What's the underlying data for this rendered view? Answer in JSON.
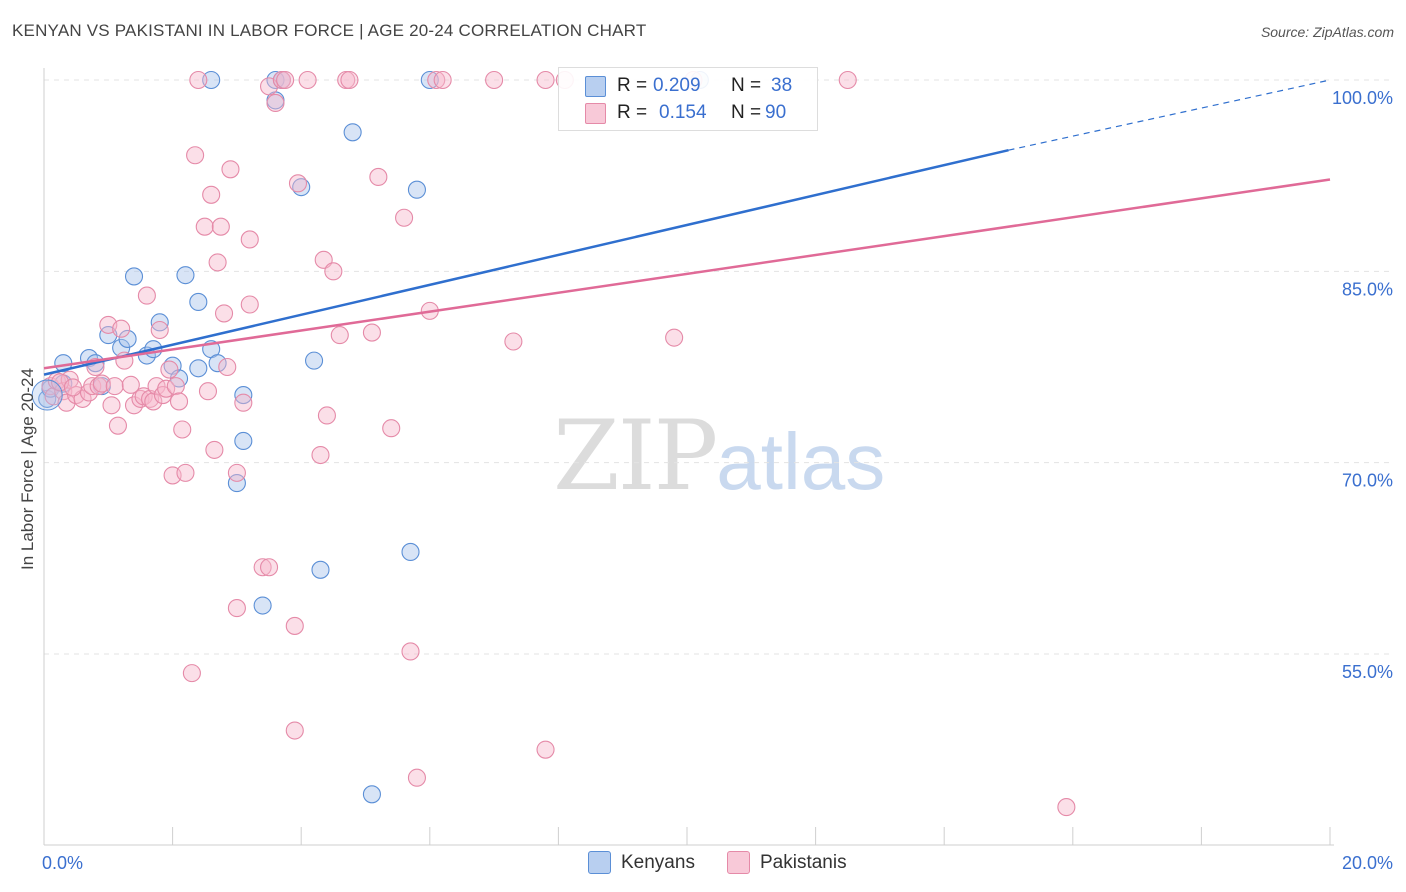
{
  "header": {
    "title": "KENYAN VS PAKISTANI IN LABOR FORCE | AGE 20-24 CORRELATION CHART",
    "source": "Source: ZipAtlas.com"
  },
  "watermark": {
    "zip": "ZIP",
    "atlas": "atlas"
  },
  "legend_top": {
    "rows": [
      {
        "r_label": "R =",
        "r_value": "0.209",
        "n_label": "N =",
        "n_value": "38"
      },
      {
        "r_label": "R =",
        "r_value": "0.154",
        "n_label": "N =",
        "n_value": "90"
      }
    ]
  },
  "legend_bottom": {
    "items": [
      "Kenyans",
      "Pakistanis"
    ]
  },
  "colors": {
    "kenyan_fill": "#a9c4ec",
    "kenyan_stroke": "#5b8fd6",
    "kenyan_line": "#2f6fce",
    "pakistani_fill": "#f6b8cb",
    "pakistani_stroke": "#e58aa8",
    "pakistani_line": "#e06a97",
    "tick_label": "#3a6fcf",
    "grid": "#e3e3e3"
  },
  "chart_data": {
    "type": "scatter",
    "ylabel": "In Labor Force | Age 20-24",
    "xlim": [
      0,
      20
    ],
    "ylim": [
      43,
      100
    ],
    "x_tick_labels": [
      "0.0%",
      "20.0%"
    ],
    "y_ticks": [
      100,
      85,
      70,
      55
    ],
    "y_tick_labels": [
      "100.0%",
      "85.0%",
      "70.0%",
      "55.0%"
    ],
    "grid": true,
    "series": [
      {
        "name": "Kenyans",
        "trend": {
          "x": [
            0,
            15
          ],
          "y": [
            76.9,
            94.5
          ],
          "dashed_to": [
            20,
            100
          ]
        },
        "points": [
          [
            0.05,
            75.0
          ],
          [
            0.3,
            76.2
          ],
          [
            0.3,
            77.8
          ],
          [
            0.7,
            78.2
          ],
          [
            0.8,
            77.8
          ],
          [
            0.9,
            76.0
          ],
          [
            1.0,
            80.0
          ],
          [
            1.2,
            79.0
          ],
          [
            1.3,
            79.7
          ],
          [
            1.4,
            84.6
          ],
          [
            1.6,
            78.4
          ],
          [
            1.7,
            78.9
          ],
          [
            1.8,
            81.0
          ],
          [
            2.0,
            77.6
          ],
          [
            2.1,
            76.6
          ],
          [
            2.2,
            84.7
          ],
          [
            2.4,
            77.4
          ],
          [
            2.4,
            82.6
          ],
          [
            2.6,
            78.9
          ],
          [
            2.7,
            77.8
          ],
          [
            2.6,
            100.0
          ],
          [
            3.0,
            68.4
          ],
          [
            3.1,
            71.7
          ],
          [
            3.1,
            75.3
          ],
          [
            3.4,
            58.8
          ],
          [
            3.6,
            98.4
          ],
          [
            3.6,
            100.0
          ],
          [
            3.7,
            100.0
          ],
          [
            4.0,
            91.6
          ],
          [
            4.2,
            78.0
          ],
          [
            4.3,
            61.6
          ],
          [
            4.8,
            95.9
          ],
          [
            5.1,
            44.0
          ],
          [
            5.7,
            63.0
          ],
          [
            5.8,
            91.4
          ],
          [
            6.0,
            100.0
          ],
          [
            10.2,
            100.0
          ],
          [
            0.1,
            75.8
          ]
        ]
      },
      {
        "name": "Pakistanis",
        "trend": {
          "x": [
            0,
            20
          ],
          "y": [
            77.4,
            92.2
          ]
        },
        "points": [
          [
            0.1,
            76.0
          ],
          [
            0.15,
            75.2
          ],
          [
            0.2,
            76.4
          ],
          [
            0.3,
            75.6
          ],
          [
            0.35,
            74.7
          ],
          [
            0.4,
            76.5
          ],
          [
            0.5,
            75.3
          ],
          [
            0.6,
            75.0
          ],
          [
            0.7,
            75.5
          ],
          [
            0.75,
            76.0
          ],
          [
            0.8,
            77.5
          ],
          [
            0.85,
            76.0
          ],
          [
            0.9,
            76.2
          ],
          [
            1.0,
            80.8
          ],
          [
            1.1,
            76.0
          ],
          [
            1.15,
            72.9
          ],
          [
            1.2,
            80.5
          ],
          [
            1.25,
            78.0
          ],
          [
            1.35,
            76.1
          ],
          [
            1.4,
            74.5
          ],
          [
            1.5,
            75.0
          ],
          [
            1.55,
            75.2
          ],
          [
            1.6,
            83.1
          ],
          [
            1.65,
            75.0
          ],
          [
            1.7,
            74.8
          ],
          [
            1.75,
            76.0
          ],
          [
            1.8,
            80.4
          ],
          [
            1.85,
            75.3
          ],
          [
            1.9,
            75.8
          ],
          [
            1.95,
            77.3
          ],
          [
            2.0,
            69.0
          ],
          [
            2.05,
            76.0
          ],
          [
            2.1,
            74.8
          ],
          [
            2.15,
            72.6
          ],
          [
            2.2,
            69.2
          ],
          [
            2.3,
            53.5
          ],
          [
            2.35,
            94.1
          ],
          [
            2.4,
            100.0
          ],
          [
            2.5,
            88.5
          ],
          [
            2.55,
            75.6
          ],
          [
            2.6,
            91.0
          ],
          [
            2.65,
            71.0
          ],
          [
            2.7,
            85.7
          ],
          [
            2.75,
            88.5
          ],
          [
            2.8,
            81.7
          ],
          [
            2.85,
            77.5
          ],
          [
            2.9,
            93.0
          ],
          [
            3.0,
            58.6
          ],
          [
            3.0,
            69.2
          ],
          [
            3.1,
            74.7
          ],
          [
            3.2,
            82.4
          ],
          [
            3.2,
            87.5
          ],
          [
            3.4,
            61.8
          ],
          [
            3.5,
            61.8
          ],
          [
            3.5,
            99.5
          ],
          [
            3.6,
            98.2
          ],
          [
            3.7,
            100.0
          ],
          [
            3.75,
            100.0
          ],
          [
            3.9,
            49.0
          ],
          [
            3.9,
            57.2
          ],
          [
            3.95,
            91.9
          ],
          [
            4.1,
            100.0
          ],
          [
            4.3,
            70.6
          ],
          [
            4.35,
            85.9
          ],
          [
            4.5,
            85.0
          ],
          [
            4.4,
            73.7
          ],
          [
            4.6,
            80.0
          ],
          [
            4.7,
            100.0
          ],
          [
            4.75,
            100.0
          ],
          [
            5.1,
            80.2
          ],
          [
            5.2,
            92.4
          ],
          [
            5.4,
            72.7
          ],
          [
            5.6,
            89.2
          ],
          [
            5.7,
            55.2
          ],
          [
            5.8,
            45.3
          ],
          [
            6.0,
            81.9
          ],
          [
            6.1,
            100.0
          ],
          [
            6.2,
            100.0
          ],
          [
            7.0,
            100.0
          ],
          [
            7.3,
            79.5
          ],
          [
            7.8,
            47.5
          ],
          [
            7.8,
            100.0
          ],
          [
            8.1,
            100.0
          ],
          [
            9.8,
            79.8
          ],
          [
            10.1,
            100.0
          ],
          [
            12.5,
            100.0
          ],
          [
            15.9,
            43.0
          ],
          [
            0.25,
            76.3
          ],
          [
            0.45,
            75.9
          ],
          [
            1.05,
            74.5
          ]
        ]
      }
    ]
  }
}
